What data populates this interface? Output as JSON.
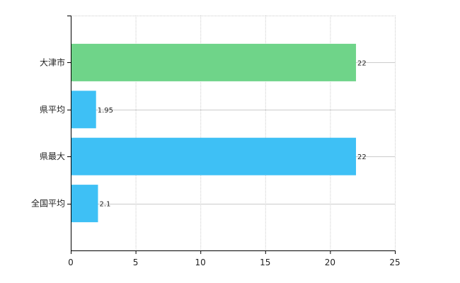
{
  "chart_data": {
    "type": "bar",
    "orientation": "horizontal",
    "categories": [
      "大津市",
      "県平均",
      "県最大",
      "全国平均"
    ],
    "values": [
      22,
      1.95,
      22,
      2.1
    ],
    "value_labels": [
      "22",
      "1.95",
      "22",
      "2.1"
    ],
    "bar_colors": [
      "#6fd489",
      "#3ec0f5",
      "#3ec0f5",
      "#3ec0f5"
    ],
    "xlim": [
      0,
      25
    ],
    "x_ticks": [
      0,
      5,
      10,
      15,
      20,
      25
    ],
    "grid": true,
    "grid_color": "#cccccc",
    "axis_color": "#000000",
    "title": "",
    "xlabel": "",
    "ylabel": ""
  }
}
